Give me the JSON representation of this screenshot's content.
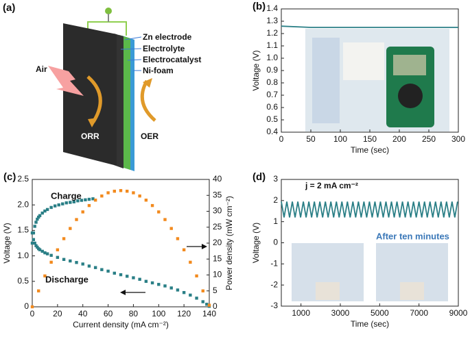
{
  "diagram": {
    "label": "(a)",
    "layers": [
      "Zn electrode",
      "Electrolyte",
      "Electrocatalyst",
      "Ni-foam"
    ],
    "air": "Air",
    "orr": "ORR",
    "oer": "OER"
  },
  "chart_data": [
    {
      "type": "line",
      "label": "(b)",
      "x_label": "Time (sec)",
      "y_label": "Voltage (V)",
      "x": [
        0,
        50,
        100,
        150,
        200,
        250,
        300
      ],
      "series": [
        {
          "color": "#2a7f86",
          "values": [
            1.26,
            1.25,
            1.25,
            1.25,
            1.25,
            1.25,
            1.25
          ]
        }
      ],
      "xlim": [
        0,
        300
      ],
      "xticks": [
        0,
        50,
        100,
        150,
        200,
        250,
        300
      ],
      "ylim": [
        0.4,
        1.4
      ],
      "yticks": [
        0.4,
        0.5,
        0.6,
        0.7,
        0.8,
        0.9,
        {
          "value": 1,
          "label": "1.0"
        },
        1.1,
        1.2,
        1.3,
        1.4
      ]
    },
    {
      "type": "scatter",
      "label": "(c)",
      "x_label": "Current density (mA cm⁻²)",
      "y_label": "Voltage (V)",
      "y2_label": "Power density (mW cm⁻²)",
      "series": [
        {
          "name": "Charge",
          "color": "#2a7f86",
          "x": [
            0,
            1,
            2,
            3,
            4,
            5,
            6,
            8,
            10,
            12,
            15,
            18,
            21,
            24,
            27,
            30,
            33,
            36,
            39,
            42,
            45,
            48
          ],
          "values": [
            1.25,
            1.45,
            1.58,
            1.66,
            1.72,
            1.76,
            1.79,
            1.84,
            1.88,
            1.91,
            1.95,
            1.98,
            2.0,
            2.02,
            2.04,
            2.05,
            2.06,
            2.08,
            2.09,
            2.1,
            2.11,
            2.12
          ]
        },
        {
          "name": "Discharge",
          "color": "#2a7f86",
          "x": [
            0,
            1,
            2,
            3,
            4,
            5,
            6,
            8,
            10,
            12,
            15,
            20,
            25,
            30,
            35,
            40,
            45,
            50,
            55,
            60,
            65,
            70,
            75,
            80,
            85,
            90,
            95,
            100,
            105,
            110,
            115,
            120,
            125,
            130,
            135,
            138,
            140
          ],
          "values": [
            1.45,
            1.32,
            1.25,
            1.2,
            1.17,
            1.14,
            1.12,
            1.09,
            1.06,
            1.04,
            1.01,
            0.97,
            0.93,
            0.9,
            0.87,
            0.84,
            0.8,
            0.77,
            0.73,
            0.7,
            0.66,
            0.63,
            0.6,
            0.57,
            0.54,
            0.5,
            0.47,
            0.44,
            0.41,
            0.37,
            0.33,
            0.28,
            0.23,
            0.17,
            0.1,
            0.05,
            0.01
          ]
        },
        {
          "color": "#f28a1e",
          "axis": "y2",
          "x": [
            0,
            5,
            10,
            15,
            20,
            25,
            30,
            35,
            40,
            45,
            50,
            55,
            60,
            65,
            70,
            75,
            80,
            85,
            90,
            95,
            100,
            105,
            110,
            115,
            120,
            125,
            130,
            135,
            140
          ],
          "values": [
            0,
            5.0,
            9.7,
            14.0,
            17.9,
            21.4,
            24.6,
            27.4,
            29.8,
            31.8,
            33.5,
            34.8,
            35.8,
            36.3,
            36.5,
            36.3,
            35.8,
            34.8,
            33.5,
            31.8,
            29.8,
            27.4,
            24.6,
            21.4,
            17.9,
            14.0,
            9.7,
            5.0,
            0.5
          ]
        }
      ],
      "xlim": [
        0,
        140
      ],
      "xticks": [
        0,
        20,
        40,
        60,
        80,
        100,
        120,
        140
      ],
      "ylim": [
        0,
        2.5
      ],
      "yticks": [
        0,
        0.5,
        {
          "value": 1,
          "label": "1.0"
        },
        1.5,
        {
          "value": 2,
          "label": "2.0"
        },
        2.5
      ],
      "y2lim": [
        0,
        40
      ],
      "y2ticks": [
        0,
        5,
        10,
        15,
        20,
        25,
        30,
        35,
        40
      ]
    },
    {
      "type": "line",
      "label": "(d)",
      "x_label": "Time (sec)",
      "y_label": "Voltage (V)",
      "annotations": [
        "j = 2 mA cm⁻²",
        "After ten minutes"
      ],
      "x": [
        0,
        140,
        280,
        420,
        560,
        700,
        840,
        980,
        1120,
        1260,
        1400,
        1540,
        1680,
        1820,
        1960,
        2100,
        2240,
        2380,
        2520,
        2660,
        2800,
        2940,
        3080,
        3220,
        3360,
        3500,
        3640,
        3780,
        3920,
        4060,
        4200,
        4340,
        4480,
        4620,
        4760,
        4900,
        5040,
        5180,
        5320,
        5460,
        5600,
        5740,
        5880,
        6020,
        6160,
        6300,
        6440,
        6580,
        6720,
        6860,
        7000,
        7140,
        7280,
        7420,
        7560,
        7700,
        7840,
        7980,
        8120,
        8260,
        8400,
        8540,
        8680,
        8820,
        8960
      ],
      "series": [
        {
          "color": "#2a7f86",
          "values": [
            1.95,
            1.2,
            1.95,
            1.2,
            1.95,
            1.2,
            1.95,
            1.2,
            1.95,
            1.2,
            1.95,
            1.2,
            1.95,
            1.2,
            1.95,
            1.2,
            1.95,
            1.2,
            1.95,
            1.2,
            1.95,
            1.2,
            1.95,
            1.2,
            1.95,
            1.2,
            1.95,
            1.2,
            1.95,
            1.2,
            1.95,
            1.2,
            1.95,
            1.2,
            1.95,
            1.2,
            1.95,
            1.2,
            1.95,
            1.2,
            1.95,
            1.2,
            1.95,
            1.2,
            1.95,
            1.2,
            1.95,
            1.2,
            1.95,
            1.2,
            1.95,
            1.2,
            1.95,
            1.2,
            1.95,
            1.2,
            1.95,
            1.2,
            1.95,
            1.2,
            1.95,
            1.2,
            1.95,
            1.2,
            1.95
          ]
        }
      ],
      "xlim": [
        0,
        9000
      ],
      "xticks": [
        1000,
        3000,
        5000,
        7000,
        9000
      ],
      "ylim": [
        -3,
        3
      ],
      "yticks": [
        -3,
        -2,
        -1,
        0,
        1,
        2,
        3
      ]
    }
  ]
}
